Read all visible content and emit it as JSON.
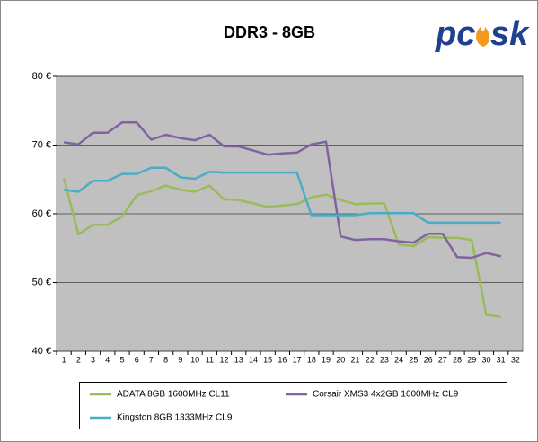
{
  "chart_data": {
    "type": "line",
    "title": "DDR3 - 8GB",
    "logo": [
      "pc",
      "sk"
    ],
    "categories": [
      "1",
      "2",
      "3",
      "4",
      "5",
      "6",
      "7",
      "8",
      "9",
      "10",
      "11",
      "12",
      "13",
      "14",
      "15",
      "16",
      "17",
      "18",
      "19",
      "20",
      "21",
      "22",
      "23",
      "24",
      "25",
      "26",
      "27",
      "28",
      "29",
      "30",
      "31",
      "32"
    ],
    "series": [
      {
        "name": "ADATA 8GB 1600MHz CL11",
        "color": "#9bbb59",
        "values": [
          65.2,
          57.0,
          58.4,
          58.4,
          59.6,
          62.7,
          63.3,
          64.1,
          63.5,
          63.2,
          64.1,
          62.1,
          62.0,
          61.5,
          61.0,
          61.2,
          61.4,
          62.4,
          62.8,
          62.0,
          61.4,
          61.5,
          61.5,
          55.5,
          55.3,
          56.6,
          56.5,
          56.5,
          56.2,
          45.3,
          45.0,
          null
        ]
      },
      {
        "name": "Corsair XMS3 4x2GB 1600MHz CL9",
        "color": "#8064a2",
        "values": [
          70.4,
          70.1,
          71.8,
          71.8,
          73.3,
          73.3,
          70.8,
          71.5,
          71.0,
          70.7,
          71.5,
          69.8,
          69.8,
          69.2,
          68.6,
          68.8,
          68.9,
          70.1,
          70.5,
          56.7,
          56.2,
          56.3,
          56.3,
          56.0,
          55.8,
          57.1,
          57.1,
          53.7,
          53.6,
          54.3,
          53.8,
          null
        ]
      },
      {
        "name": "Kingston 8GB 1333MHz CL9",
        "color": "#4bacc6",
        "values": [
          63.5,
          63.2,
          64.8,
          64.8,
          65.8,
          65.8,
          66.7,
          66.7,
          65.3,
          65.1,
          66.1,
          66.0,
          66.0,
          66.0,
          66.0,
          66.0,
          66.0,
          59.8,
          59.8,
          59.8,
          59.8,
          60.1,
          60.1,
          60.1,
          60.1,
          58.7,
          58.7,
          58.7,
          58.7,
          58.7,
          58.7,
          null
        ]
      }
    ],
    "ylim": [
      40,
      80
    ],
    "yticks": [
      {
        "value": 40,
        "label": "40 €"
      },
      {
        "value": 50,
        "label": "50 €"
      },
      {
        "value": 60,
        "label": "60 €"
      },
      {
        "value": 70,
        "label": "70 €"
      },
      {
        "value": 80,
        "label": "80 €"
      }
    ],
    "grid": true,
    "legend": "bottom"
  }
}
